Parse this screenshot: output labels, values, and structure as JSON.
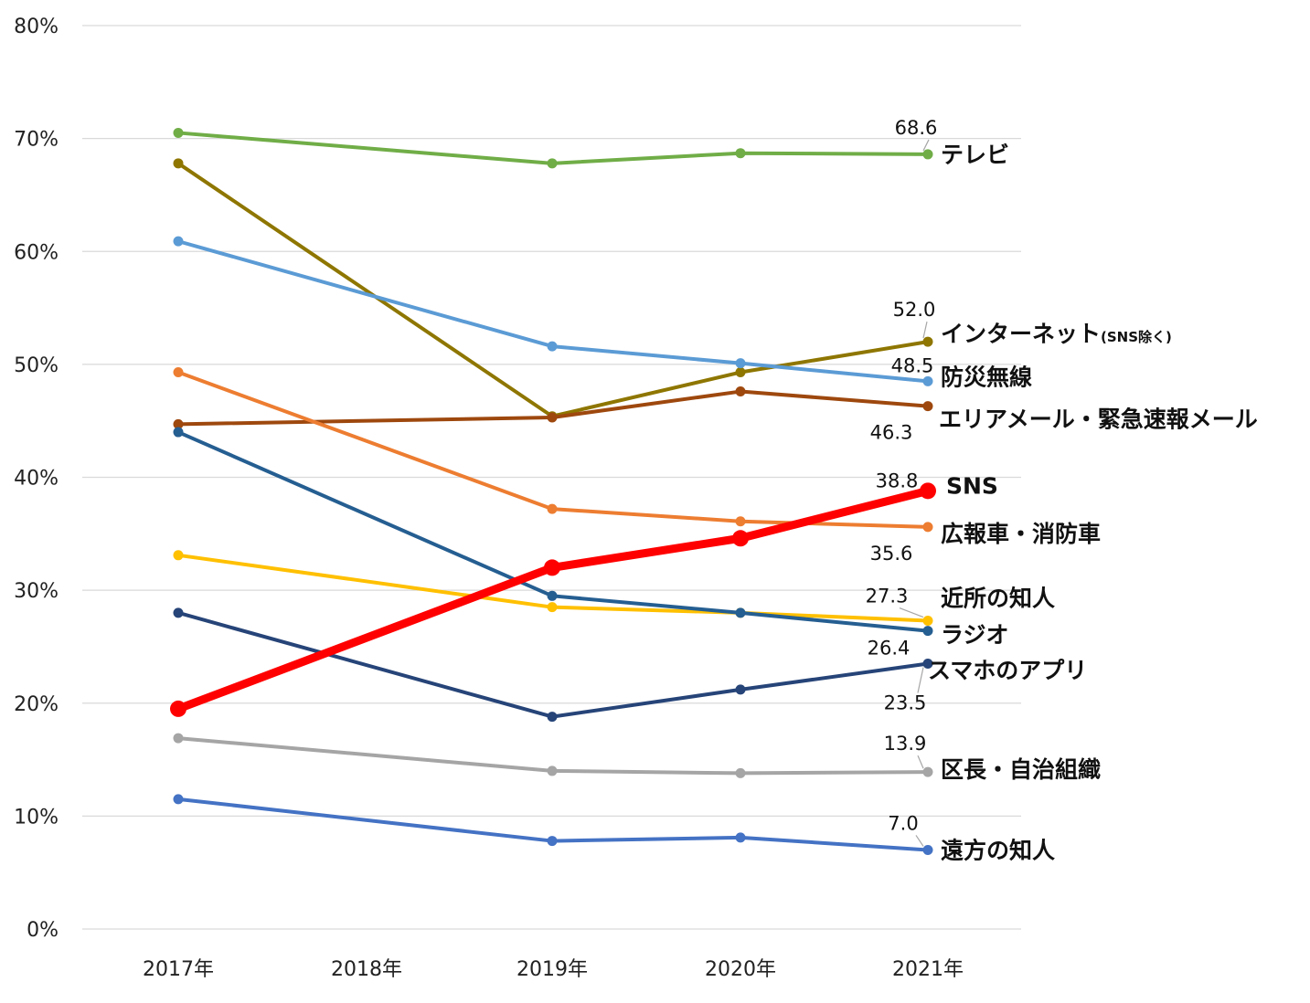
{
  "chart_data": {
    "type": "line",
    "categories": [
      "2017年",
      "2018年",
      "2019年",
      "2020年",
      "2021年"
    ],
    "x_present": [
      true,
      false,
      true,
      true,
      true
    ],
    "ylim": [
      0,
      80
    ],
    "y_ticks": [
      "0%",
      "10%",
      "20%",
      "30%",
      "40%",
      "50%",
      "60%",
      "70%",
      "80%"
    ],
    "grid": true,
    "series": [
      {
        "name": "テレビ",
        "color": "#70ad47",
        "values": [
          70.5,
          null,
          67.8,
          68.7,
          68.6
        ],
        "label_value": "68.6"
      },
      {
        "name": "インターネット",
        "name_suffix": "(SNS除く)",
        "color": "#8e7600",
        "values": [
          67.8,
          null,
          45.4,
          49.3,
          52.0
        ],
        "label_value": "52.0"
      },
      {
        "name": "防災無線",
        "color": "#5b9bd5",
        "values": [
          60.9,
          null,
          51.6,
          50.1,
          48.5
        ],
        "label_value": "48.5"
      },
      {
        "name": "エリアメール・緊急速報メール",
        "color": "#9e480e",
        "values": [
          44.7,
          null,
          45.3,
          47.6,
          46.3
        ],
        "label_value": "46.3"
      },
      {
        "name": "SNS",
        "color": "#ff0000",
        "bold": true,
        "values": [
          19.5,
          null,
          32.0,
          34.6,
          38.8
        ],
        "label_value": "38.8"
      },
      {
        "name": "広報車・消防車",
        "color": "#ed7d31",
        "values": [
          49.3,
          null,
          37.2,
          36.1,
          35.6
        ],
        "label_value": "35.6"
      },
      {
        "name": "近所の知人",
        "color": "#ffc000",
        "values": [
          33.1,
          null,
          28.5,
          28.0,
          27.3
        ],
        "label_value": "27.3"
      },
      {
        "name": "ラジオ",
        "color": "#255e91",
        "values": [
          44.0,
          null,
          29.5,
          28.0,
          26.4
        ],
        "label_value": "26.4"
      },
      {
        "name": "スマホのアプリ",
        "color": "#264478",
        "values": [
          28.0,
          null,
          18.8,
          21.2,
          23.5
        ],
        "label_value": "23.5"
      },
      {
        "name": "区長・自治組織",
        "color": "#a5a5a5",
        "values": [
          16.9,
          null,
          14.0,
          13.8,
          13.9
        ],
        "label_value": "13.9"
      },
      {
        "name": "遠方の知人",
        "color": "#4472c4",
        "values": [
          11.5,
          null,
          7.8,
          8.1,
          7.0
        ],
        "label_value": "7.0"
      }
    ]
  }
}
